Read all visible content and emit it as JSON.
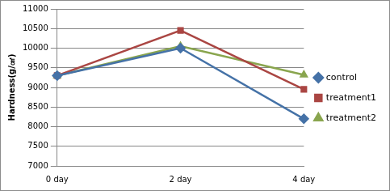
{
  "chart_data": {
    "type": "line",
    "y_label": "Hardness(g/㎠)",
    "categories": [
      "0 day",
      "2 day",
      "4 day"
    ],
    "series": [
      {
        "name": "control",
        "color": "#4572a7",
        "marker": "diamond",
        "values": [
          9300,
          10000,
          8200
        ]
      },
      {
        "name": "treatment1",
        "color": "#aa4643",
        "marker": "square",
        "values": [
          9300,
          10450,
          8950
        ]
      },
      {
        "name": "treatment2",
        "color": "#89a54e",
        "marker": "triangle",
        "values": [
          9300,
          10050,
          9320
        ]
      }
    ],
    "ylim": [
      7000,
      11000
    ],
    "yticks": [
      7000,
      7500,
      8000,
      8500,
      9000,
      9500,
      10000,
      10500,
      11000
    ],
    "grid": true,
    "legend": "right"
  }
}
